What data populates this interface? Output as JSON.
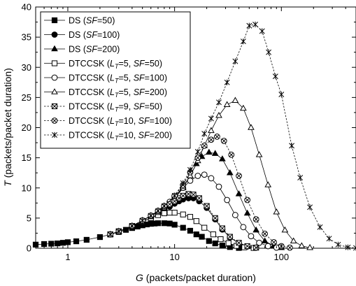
{
  "chart_data": {
    "type": "line",
    "x_scale": "log",
    "xlim": [
      0.5,
      500
    ],
    "ylim": [
      0,
      40
    ],
    "grid": false,
    "legend_position": "top-left",
    "xlabel": {
      "main": "G",
      "rest": " (packets/packet duration)"
    },
    "ylabel": {
      "main": "T",
      "rest": " (packets/packet duration)"
    },
    "x_ticks": [
      {
        "value": 1,
        "label": "1"
      },
      {
        "value": 10,
        "label": "10"
      },
      {
        "value": 100,
        "label": "100"
      }
    ],
    "y_ticks": [
      {
        "value": 0,
        "label": "0"
      },
      {
        "value": 5,
        "label": "5"
      },
      {
        "value": 10,
        "label": "10"
      },
      {
        "value": 15,
        "label": "15"
      },
      {
        "value": 20,
        "label": "20"
      },
      {
        "value": 25,
        "label": "25"
      },
      {
        "value": 30,
        "label": "30"
      },
      {
        "value": 35,
        "label": "35"
      },
      {
        "value": 40,
        "label": "40"
      }
    ],
    "series": [
      {
        "name": "DS (SF=50)",
        "name_parts": [
          "DS (",
          "SF",
          "=50)"
        ],
        "marker": "square-filled",
        "dash": "solid",
        "points": [
          [
            0.5,
            0.6
          ],
          [
            0.6,
            0.7
          ],
          [
            0.7,
            0.75
          ],
          [
            0.8,
            0.8
          ],
          [
            0.9,
            0.9
          ],
          [
            1.0,
            1.0
          ],
          [
            1.2,
            1.15
          ],
          [
            1.5,
            1.4
          ],
          [
            2.0,
            1.85
          ],
          [
            2.5,
            2.3
          ],
          [
            3.0,
            2.7
          ],
          [
            3.5,
            3.05
          ],
          [
            4.0,
            3.35
          ],
          [
            4.5,
            3.6
          ],
          [
            5.0,
            3.8
          ],
          [
            5.5,
            3.95
          ],
          [
            6.0,
            4.05
          ],
          [
            6.5,
            4.1
          ],
          [
            7.0,
            4.15
          ],
          [
            8.0,
            4.15
          ],
          [
            9.0,
            4.1
          ],
          [
            10.0,
            3.9
          ],
          [
            12.0,
            3.4
          ],
          [
            14.0,
            2.9
          ],
          [
            16.0,
            2.3
          ],
          [
            18.0,
            1.9
          ],
          [
            21.0,
            1.2
          ],
          [
            24.0,
            0.8
          ],
          [
            28.0,
            0.45
          ],
          [
            33.0,
            0.2
          ],
          [
            40.0,
            0.05
          ]
        ]
      },
      {
        "name": "DS (SF=100)",
        "name_parts": [
          "DS (",
          "SF",
          "=100)"
        ],
        "marker": "circle-filled",
        "dash": "solid",
        "points": [
          [
            2.5,
            2.3
          ],
          [
            3.0,
            2.8
          ],
          [
            4.0,
            3.6
          ],
          [
            5.0,
            4.4
          ],
          [
            6.0,
            5.0
          ],
          [
            7.0,
            5.7
          ],
          [
            8.0,
            6.3
          ],
          [
            9.0,
            6.9
          ],
          [
            10.0,
            7.4
          ],
          [
            11.0,
            7.8
          ],
          [
            12.0,
            8.1
          ],
          [
            13.5,
            8.3
          ],
          [
            15.0,
            8.3
          ],
          [
            17.0,
            7.8
          ],
          [
            20.0,
            6.7
          ],
          [
            24.0,
            4.8
          ],
          [
            28.0,
            3.1
          ],
          [
            33.0,
            1.8
          ],
          [
            40.0,
            0.8
          ],
          [
            48.0,
            0.3
          ],
          [
            58.0,
            0.1
          ]
        ]
      },
      {
        "name": "DS (SF=200)",
        "name_parts": [
          "DS (",
          "SF",
          "=200)"
        ],
        "marker": "triangle-filled",
        "dash": "solid",
        "points": [
          [
            2.5,
            2.3
          ],
          [
            3.0,
            2.8
          ],
          [
            4.0,
            3.7
          ],
          [
            5.0,
            4.6
          ],
          [
            6.0,
            5.4
          ],
          [
            7.0,
            6.1
          ],
          [
            8.0,
            6.8
          ],
          [
            10.0,
            8.2
          ],
          [
            12.0,
            10.0
          ],
          [
            14.0,
            12.0
          ],
          [
            16.0,
            14.0
          ],
          [
            18.0,
            15.2
          ],
          [
            21.0,
            15.9
          ],
          [
            24.0,
            15.7
          ],
          [
            28.0,
            14.8
          ],
          [
            33.0,
            12.5
          ],
          [
            40.0,
            9.0
          ],
          [
            48.0,
            5.8
          ],
          [
            58.0,
            3.0
          ],
          [
            70.0,
            1.2
          ],
          [
            85.0,
            0.4
          ],
          [
            100.0,
            0.1
          ]
        ]
      },
      {
        "name": "DTCCSK (LT=5, SF=50)",
        "name_parts": [
          "DTCCSK (",
          "L",
          "T",
          "=5, ",
          "SF",
          "=50)"
        ],
        "marker": "square-open",
        "dash": "solid",
        "points": [
          [
            2.5,
            2.3
          ],
          [
            3.0,
            2.8
          ],
          [
            4.0,
            3.6
          ],
          [
            5.0,
            4.4
          ],
          [
            6.0,
            5.0
          ],
          [
            7.0,
            5.5
          ],
          [
            8.0,
            5.8
          ],
          [
            9.0,
            5.9
          ],
          [
            10.0,
            5.9
          ],
          [
            12.0,
            5.6
          ],
          [
            14.0,
            5.2
          ],
          [
            16.0,
            4.5
          ],
          [
            19.0,
            3.4
          ],
          [
            23.0,
            2.3
          ],
          [
            27.0,
            1.5
          ],
          [
            32.0,
            0.85
          ],
          [
            38.0,
            0.4
          ],
          [
            45.0,
            0.15
          ],
          [
            55.0,
            0.05
          ]
        ]
      },
      {
        "name": "DTCCSK (LT=5, SF=100)",
        "name_parts": [
          "DTCCSK (",
          "L",
          "T",
          "=5, ",
          "SF",
          "=100)"
        ],
        "marker": "circle-open",
        "dash": "solid",
        "points": [
          [
            2.5,
            2.3
          ],
          [
            3.0,
            2.8
          ],
          [
            4.0,
            3.7
          ],
          [
            5.0,
            4.6
          ],
          [
            6.0,
            5.4
          ],
          [
            7.0,
            6.2
          ],
          [
            8.0,
            7.0
          ],
          [
            9.0,
            7.7
          ],
          [
            10.0,
            8.5
          ],
          [
            12.0,
            10.0
          ],
          [
            14.0,
            11.2
          ],
          [
            16.5,
            12.0
          ],
          [
            19.0,
            12.2
          ],
          [
            22.0,
            11.6
          ],
          [
            26.0,
            10.2
          ],
          [
            31.0,
            8.0
          ],
          [
            37.0,
            5.5
          ],
          [
            44.0,
            3.5
          ],
          [
            52.0,
            2.0
          ],
          [
            62.0,
            0.9
          ],
          [
            75.0,
            0.35
          ],
          [
            90.0,
            0.1
          ]
        ]
      },
      {
        "name": "DTCCSK (LT=5, SF=200)",
        "name_parts": [
          "DTCCSK (",
          "L",
          "T",
          "=5, ",
          "SF",
          "=200)"
        ],
        "marker": "triangle-open",
        "dash": "solid",
        "points": [
          [
            2.5,
            2.3
          ],
          [
            3.0,
            2.8
          ],
          [
            4.0,
            3.7
          ],
          [
            5.0,
            4.6
          ],
          [
            6.0,
            5.4
          ],
          [
            7.0,
            6.2
          ],
          [
            8.0,
            7.0
          ],
          [
            10.0,
            8.5
          ],
          [
            12.0,
            10.2
          ],
          [
            14.0,
            12.0
          ],
          [
            16.5,
            14.5
          ],
          [
            19.0,
            17.0
          ],
          [
            22.0,
            19.5
          ],
          [
            26.0,
            22.0
          ],
          [
            31.0,
            23.8
          ],
          [
            37.0,
            24.5
          ],
          [
            44.0,
            23.2
          ],
          [
            52.0,
            20.0
          ],
          [
            62.0,
            15.5
          ],
          [
            75.0,
            10.5
          ],
          [
            90.0,
            6.0
          ],
          [
            108.0,
            3.0
          ],
          [
            130.0,
            1.2
          ],
          [
            155.0,
            0.4
          ],
          [
            185.0,
            0.1
          ]
        ]
      },
      {
        "name": "DTCCSK (LT=9, SF=50)",
        "name_parts": [
          "DTCCSK (",
          "L",
          "T",
          "=9, ",
          "SF",
          "=50)"
        ],
        "marker": "square-x",
        "dash": "dashed",
        "points": [
          [
            2.5,
            2.3
          ],
          [
            3.0,
            2.8
          ],
          [
            4.0,
            3.7
          ],
          [
            5.0,
            4.5
          ],
          [
            6.0,
            5.3
          ],
          [
            7.0,
            6.0
          ],
          [
            8.0,
            6.8
          ],
          [
            9.0,
            7.3
          ],
          [
            10.0,
            7.8
          ],
          [
            11.0,
            8.3
          ],
          [
            12.0,
            8.7
          ],
          [
            13.5,
            9.0
          ],
          [
            15.0,
            8.9
          ],
          [
            17.0,
            8.3
          ],
          [
            20.0,
            7.0
          ],
          [
            24.0,
            5.0
          ],
          [
            28.0,
            3.3
          ],
          [
            33.0,
            1.9
          ],
          [
            40.0,
            0.9
          ],
          [
            48.0,
            0.35
          ],
          [
            58.0,
            0.1
          ]
        ]
      },
      {
        "name": "DTCCSK (LT=10, SF=100)",
        "name_parts": [
          "DTCCSK (",
          "L",
          "T",
          "=10, ",
          "SF",
          "=100)"
        ],
        "marker": "circle-x",
        "dash": "dashed",
        "points": [
          [
            2.5,
            2.3
          ],
          [
            3.0,
            2.8
          ],
          [
            4.0,
            3.7
          ],
          [
            5.0,
            4.6
          ],
          [
            6.0,
            5.4
          ],
          [
            7.0,
            6.2
          ],
          [
            8.0,
            7.0
          ],
          [
            10.0,
            8.7
          ],
          [
            12.0,
            10.5
          ],
          [
            14.0,
            12.6
          ],
          [
            16.5,
            15.0
          ],
          [
            19.0,
            17.0
          ],
          [
            22.0,
            18.0
          ],
          [
            25.0,
            18.5
          ],
          [
            29.0,
            17.8
          ],
          [
            34.0,
            15.5
          ],
          [
            40.0,
            12.0
          ],
          [
            48.0,
            8.0
          ],
          [
            58.0,
            4.8
          ],
          [
            70.0,
            2.4
          ],
          [
            85.0,
            1.0
          ],
          [
            100.0,
            0.35
          ],
          [
            120.0,
            0.1
          ]
        ]
      },
      {
        "name": "DTCCSK (LT=10, SF=200)",
        "name_parts": [
          "DTCCSK (",
          "L",
          "T",
          "=10, ",
          "SF",
          "=200)"
        ],
        "marker": "star-x",
        "dash": "dashed",
        "points": [
          [
            2.5,
            2.3
          ],
          [
            3.0,
            2.8
          ],
          [
            4.0,
            3.7
          ],
          [
            5.0,
            4.6
          ],
          [
            6.0,
            5.4
          ],
          [
            7.0,
            6.2
          ],
          [
            8.0,
            7.0
          ],
          [
            10.0,
            8.7
          ],
          [
            12.0,
            10.8
          ],
          [
            14.0,
            13.0
          ],
          [
            16.5,
            16.0
          ],
          [
            19.0,
            19.0
          ],
          [
            22.0,
            21.5
          ],
          [
            26.0,
            24.2
          ],
          [
            31.0,
            27.5
          ],
          [
            37.0,
            31.0
          ],
          [
            44.0,
            34.3
          ],
          [
            50.0,
            36.9
          ],
          [
            57.0,
            37.1
          ],
          [
            66.0,
            36.0
          ],
          [
            76.0,
            32.5
          ],
          [
            88.0,
            28.5
          ],
          [
            100.0,
            25.5
          ],
          [
            125.0,
            17.0
          ],
          [
            150.0,
            11.7
          ],
          [
            185.0,
            6.8
          ],
          [
            230.0,
            3.5
          ],
          [
            280.0,
            1.6
          ],
          [
            340.0,
            0.6
          ],
          [
            420.0,
            0.15
          ],
          [
            500.0,
            0.05
          ]
        ]
      }
    ]
  }
}
